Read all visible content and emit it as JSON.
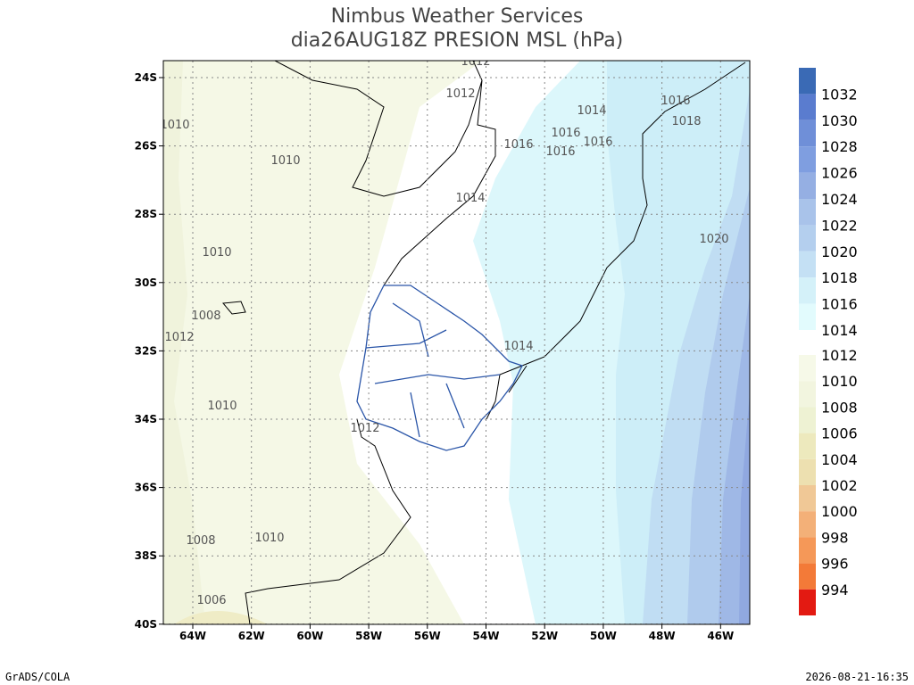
{
  "title": [
    "Nimbus Weather Services",
    "dia26AUG18Z PRESION MSL (hPa)"
  ],
  "map": {
    "x_ticks": [
      "64W",
      "62W",
      "60W",
      "58W",
      "56W",
      "54W",
      "52W",
      "50W",
      "48W",
      "46W"
    ],
    "y_ticks": [
      "24S",
      "26S",
      "28S",
      "30S",
      "32S",
      "34S",
      "36S",
      "38S",
      "40S"
    ],
    "contour_labels": [
      "1012",
      "1012",
      "1010",
      "1010",
      "1014",
      "1016",
      "1018",
      "1016",
      "1016",
      "1016",
      "1016",
      "1014",
      "1020",
      "1010",
      "1008",
      "1012",
      "1014",
      "1010",
      "1012",
      "1008",
      "1010",
      "1006"
    ]
  },
  "colorbar": {
    "labels": [
      "1032",
      "1030",
      "1028",
      "1026",
      "1024",
      "1022",
      "1020",
      "1018",
      "1016",
      "1014",
      "1012",
      "1010",
      "1008",
      "1006",
      "1004",
      "1002",
      "1000",
      "998",
      "996",
      "994"
    ],
    "colors": [
      "#3a6ab5",
      "#5a7ccf",
      "#6f8fd8",
      "#7f9ee0",
      "#95afe3",
      "#a9c3ea",
      "#b4cfee",
      "#c4e0f4",
      "#d4f1f9",
      "#e2fbfd",
      "#f6f9e8",
      "#f2f5df",
      "#eef2d3",
      "#ede9bd",
      "#ede0b0",
      "#f0c896",
      "#f3b078",
      "#f59858",
      "#f37a38",
      "#e31a12"
    ]
  },
  "footer": {
    "left": "GrADS/COLA",
    "right": "2026-08-21-16:35"
  }
}
